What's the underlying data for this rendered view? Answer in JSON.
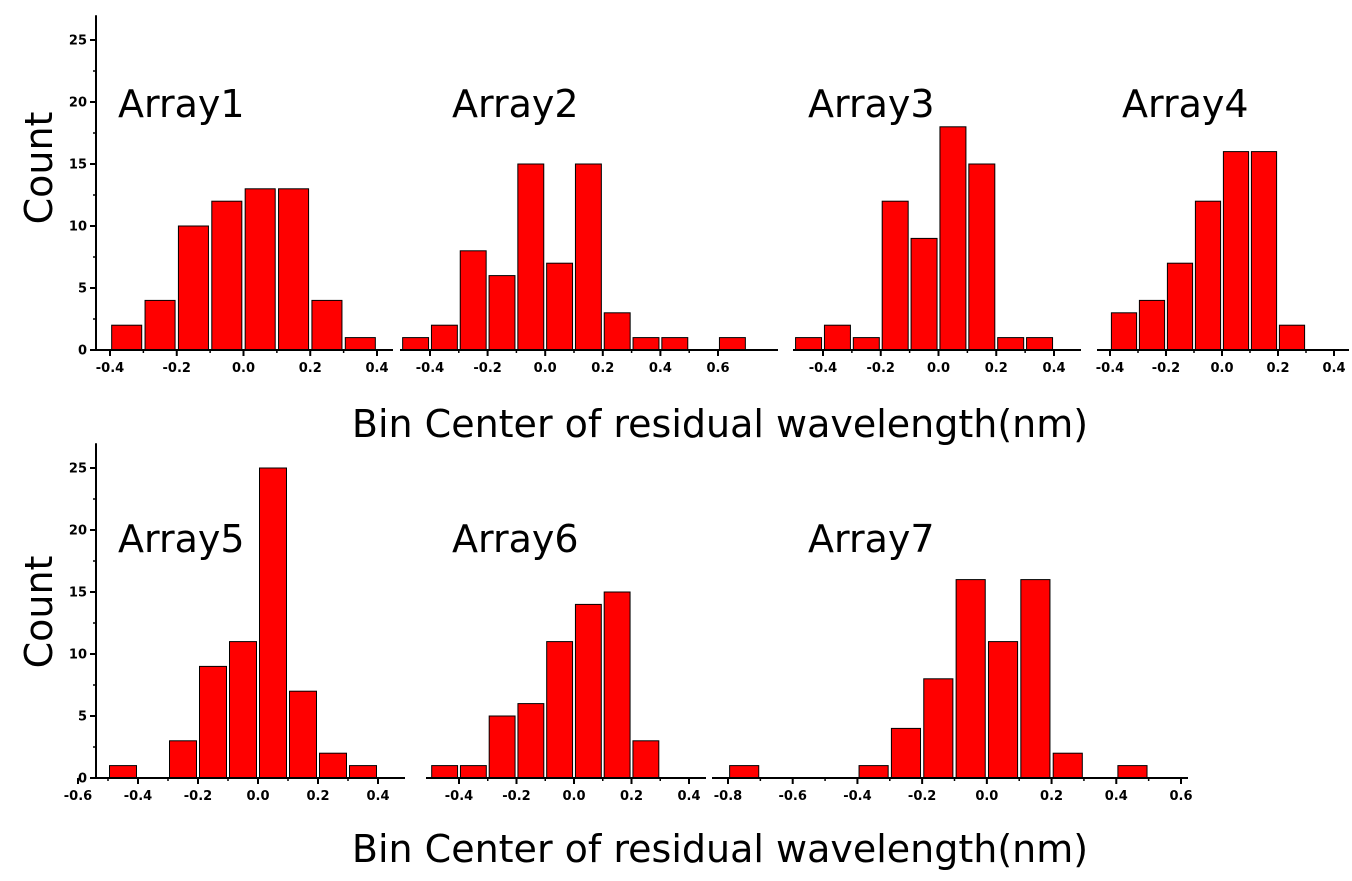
{
  "chart_data": {
    "type": "bar",
    "color": "#ff0000",
    "edge_color": "#000000",
    "rows": [
      {
        "ylabel": "Count",
        "xlabel": "Bin Center of residual wavelength(nm)",
        "ylim": [
          0,
          27
        ],
        "yticks": [
          0,
          5,
          10,
          15,
          20,
          25
        ]
      },
      {
        "ylabel": "Count",
        "xlabel": "Bin Center of residual wavelength(nm)",
        "ylim": [
          0,
          27
        ],
        "yticks": [
          0,
          5,
          10,
          15,
          20,
          25
        ]
      }
    ],
    "panels": [
      {
        "title": "Array1",
        "row": 0,
        "xlim": [
          -0.47,
          0.5
        ],
        "xticks": [
          -0.4,
          -0.2,
          0.0,
          0.2,
          0.4
        ],
        "xtick_labels": [
          "-0.4",
          "-0.2",
          "0.0",
          "0.2",
          "0.4"
        ],
        "x": [
          -0.35,
          -0.25,
          -0.15,
          -0.05,
          0.05,
          0.15,
          0.25,
          0.35
        ],
        "values": [
          2,
          4,
          10,
          12,
          13,
          13,
          4,
          1
        ]
      },
      {
        "title": "Array2",
        "row": 0,
        "xlim": [
          -0.52,
          0.8
        ],
        "xticks": [
          -0.4,
          -0.2,
          0.0,
          0.2,
          0.4,
          0.6
        ],
        "xtick_labels": [
          "-0.4",
          "-0.2",
          "0.0",
          "0.2",
          "0.4",
          "0.6"
        ],
        "x": [
          -0.45,
          -0.35,
          -0.25,
          -0.15,
          -0.05,
          0.05,
          0.15,
          0.25,
          0.35,
          0.45,
          0.65
        ],
        "values": [
          1,
          2,
          8,
          6,
          15,
          7,
          15,
          3,
          1,
          1,
          1
        ]
      },
      {
        "title": "Array3",
        "row": 0,
        "xlim": [
          -0.52,
          0.48
        ],
        "xticks": [
          -0.4,
          -0.2,
          0.0,
          0.2,
          0.4
        ],
        "xtick_labels": [
          "-0.4",
          "-0.2",
          "0.0",
          "0.2",
          "0.4"
        ],
        "x": [
          -0.45,
          -0.35,
          -0.25,
          -0.15,
          -0.05,
          0.05,
          0.15,
          0.25,
          0.35
        ],
        "values": [
          1,
          2,
          1,
          12,
          9,
          18,
          15,
          1,
          1
        ]
      },
      {
        "title": "Array4",
        "row": 0,
        "xlim": [
          -0.42,
          0.42
        ],
        "xticks": [
          -0.4,
          -0.2,
          0.0,
          0.2,
          0.4
        ],
        "xtick_labels": [
          "-0.4",
          "-0.2",
          "0.0",
          "0.2",
          "0.4"
        ],
        "x": [
          -0.35,
          -0.25,
          -0.15,
          -0.05,
          0.05,
          0.15,
          0.25
        ],
        "values": [
          3,
          4,
          7,
          12,
          16,
          16,
          2
        ]
      },
      {
        "title": "Array5",
        "row": 1,
        "xlim": [
          -0.6,
          0.5
        ],
        "xticks": [
          -0.6,
          -0.4,
          -0.2,
          0.0,
          0.2,
          0.4
        ],
        "xtick_labels": [
          "-0.6",
          "-0.4",
          "-0.2",
          "0.0",
          "0.2",
          "0.4"
        ],
        "x": [
          -0.45,
          -0.25,
          -0.15,
          -0.05,
          0.05,
          0.15,
          0.25,
          0.35
        ],
        "values": [
          1,
          3,
          9,
          11,
          25,
          7,
          2,
          1
        ]
      },
      {
        "title": "Array6",
        "row": 1,
        "xlim": [
          -0.56,
          0.42
        ],
        "xticks": [
          -0.4,
          -0.2,
          0.0,
          0.2,
          0.4
        ],
        "xtick_labels": [
          "-0.4",
          "-0.2",
          "0.0",
          "0.2",
          "0.4"
        ],
        "x": [
          -0.45,
          -0.35,
          -0.25,
          -0.15,
          -0.05,
          0.05,
          0.15,
          0.25
        ],
        "values": [
          1,
          1,
          5,
          6,
          11,
          14,
          15,
          3
        ]
      },
      {
        "title": "Array7",
        "row": 1,
        "xlim": [
          -0.8,
          0.6
        ],
        "xticks": [
          -0.8,
          -0.6,
          -0.4,
          -0.2,
          0.0,
          0.2,
          0.4,
          0.6
        ],
        "xtick_labels": [
          "-0.8",
          "-0.6",
          "-0.4",
          "-0.2",
          "0.0",
          "0.2",
          "0.4",
          "0.6"
        ],
        "x": [
          -0.75,
          -0.35,
          -0.25,
          -0.15,
          -0.05,
          0.05,
          0.15,
          0.25,
          0.45
        ],
        "values": [
          1,
          1,
          4,
          8,
          16,
          11,
          16,
          2,
          1
        ]
      }
    ]
  }
}
